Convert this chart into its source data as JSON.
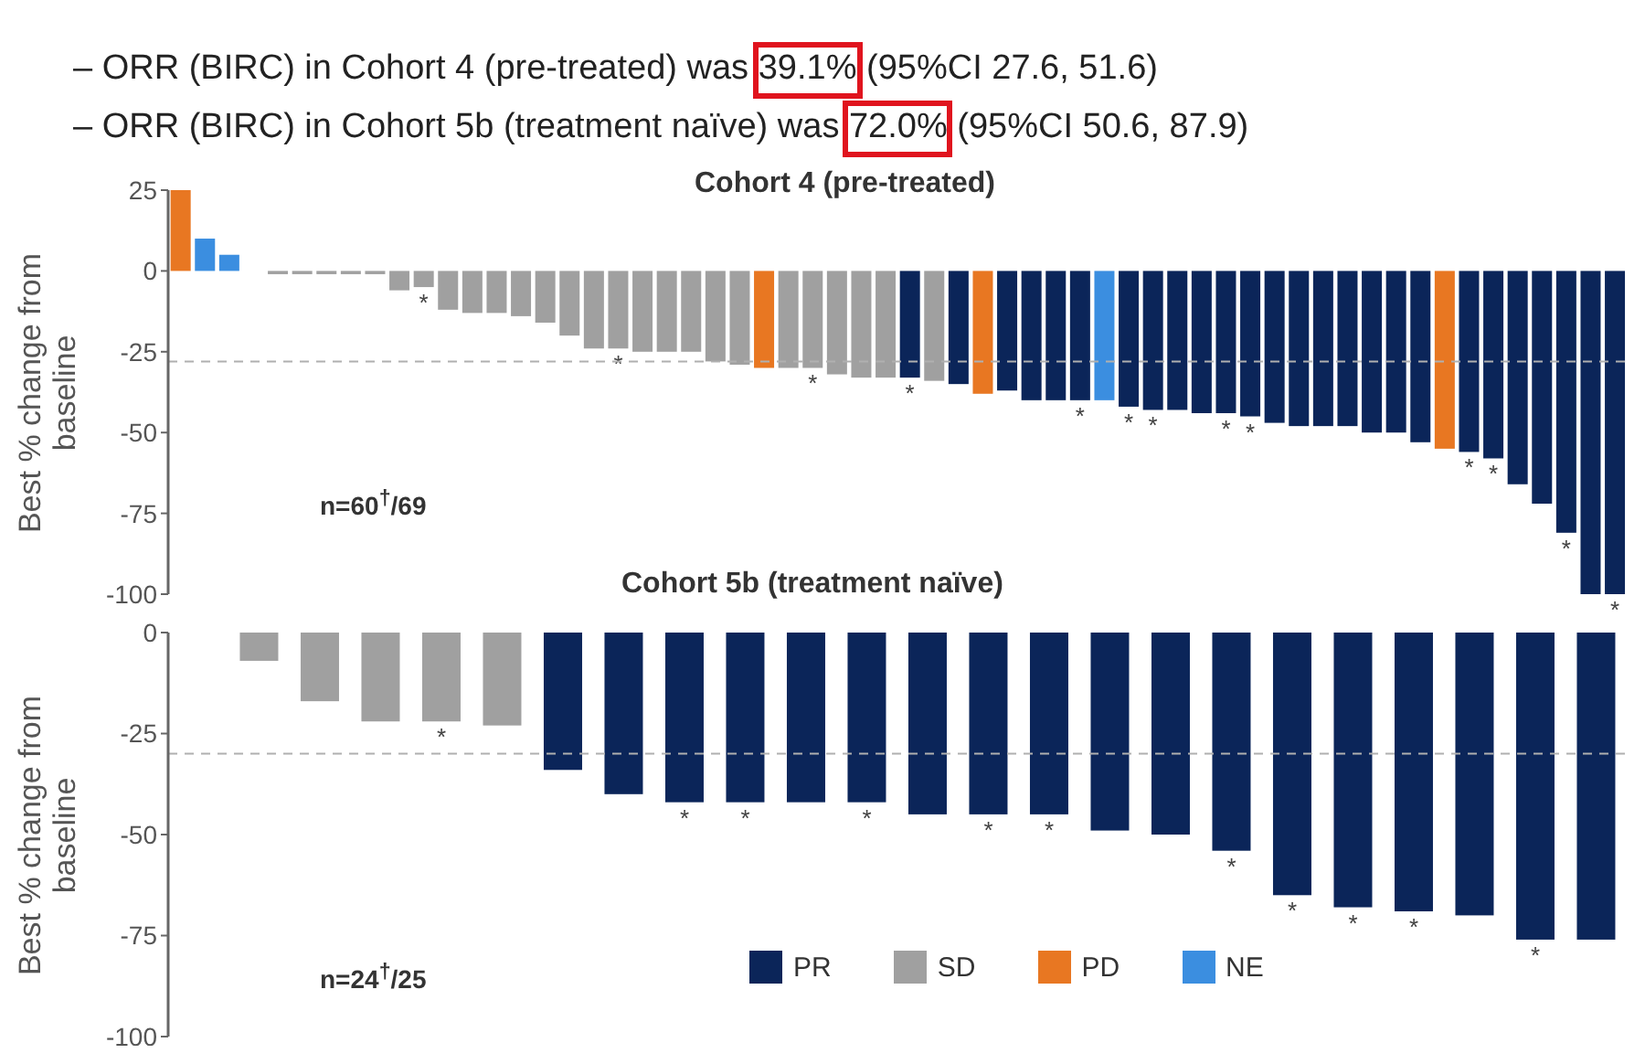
{
  "chart_data": [
    {
      "type": "bar",
      "title": "Cohort 4 (pre-treated)",
      "ylabel": "Best % change from baseline",
      "annotations": [
        "– ORR (BIRC) in Cohort 4 (pre-treated) was 39.1% (95%CI 27.6, 51.6)",
        "– ORR (BIRC) in Cohort 5b (treatment naïve) was 72.0% (95%CI 50.6, 87.9)",
        "n=60$^{†}$/69"
      ],
      "categories": [
        null,
        null,
        null,
        null,
        null,
        null,
        null,
        null,
        null,
        null,
        null,
        null,
        null,
        null,
        null,
        null,
        null,
        null,
        null,
        null,
        null,
        null,
        null,
        null,
        null,
        null,
        null,
        null,
        null,
        null,
        null,
        null,
        null,
        null,
        null,
        null,
        null,
        null,
        null,
        null,
        null,
        null,
        null,
        null,
        null,
        null,
        null,
        null,
        null,
        null,
        null,
        null,
        null,
        null,
        null,
        null,
        null,
        null,
        null,
        null
      ],
      "values": [
        25,
        10,
        5,
        null,
        -1,
        -1,
        -1,
        -1,
        -1,
        -6,
        -5,
        -12,
        -13,
        -13,
        -14,
        -16,
        -20,
        -24,
        -24,
        -25,
        -25,
        -25,
        -28,
        -29,
        -30,
        -30,
        -30,
        -32,
        -33,
        -33,
        -33,
        -34,
        -35,
        -38,
        -37,
        -40,
        -40,
        -40,
        -40,
        -42,
        -43,
        -43,
        -44,
        -44,
        -45,
        -47,
        -48,
        -48,
        -48,
        -50,
        -50,
        -53,
        -55,
        -56,
        -58,
        -66,
        -72,
        -81,
        -100,
        -100
      ],
      "colors": [
        "#e87722",
        "#3b8ee0",
        "#3b8ee0",
        "#a0a0a0",
        "#a0a0a0",
        "#a0a0a0",
        "#a0a0a0",
        "#a0a0a0",
        "#a0a0a0",
        "#a0a0a0",
        "#a0a0a0",
        "#a0a0a0",
        "#a0a0a0",
        "#a0a0a0",
        "#a0a0a0",
        "#a0a0a0",
        "#a0a0a0",
        "#a0a0a0",
        "#a0a0a0",
        "#a0a0a0",
        "#a0a0a0",
        "#a0a0a0",
        "#a0a0a0",
        "#a0a0a0",
        "#e87722",
        "#a0a0a0",
        "#a0a0a0",
        "#a0a0a0",
        "#a0a0a0",
        "#a0a0a0",
        "#0b2559",
        "#a0a0a0",
        "#0b2559",
        "#e87722",
        "#0b2559",
        "#0b2559",
        "#0b2559",
        "#0b2559",
        "#3b8ee0",
        "#0b2559",
        "#0b2559",
        "#0b2559",
        "#0b2559",
        "#0b2559",
        "#0b2559",
        "#0b2559",
        "#0b2559",
        "#0b2559",
        "#0b2559",
        "#0b2559",
        "#0b2559",
        "#0b2559",
        "#e87722",
        "#0b2559",
        "#0b2559",
        "#0b2559",
        "#0b2559",
        "#0b2559",
        "#0b2559",
        "#0b2559"
      ],
      "value_labels": [
        null,
        null,
        null,
        null,
        null,
        null,
        null,
        null,
        null,
        null,
        "*",
        null,
        null,
        null,
        null,
        null,
        null,
        null,
        "*",
        null,
        null,
        null,
        null,
        null,
        null,
        null,
        "*",
        null,
        null,
        null,
        "*",
        null,
        null,
        null,
        null,
        null,
        null,
        "*",
        null,
        "*",
        "*",
        null,
        null,
        "*",
        "*",
        null,
        null,
        null,
        null,
        null,
        null,
        null,
        null,
        "*",
        "*",
        null,
        null,
        "*",
        null,
        "*"
      ],
      "ylim": [
        -100,
        25
      ],
      "yticks": [
        25,
        0,
        -25,
        -50,
        -75,
        -100
      ],
      "grid": false,
      "ref_lines": [
        {
          "axis": "y",
          "value": -28,
          "color": "#b0b0b0",
          "line_style": "dashed"
        }
      ]
    },
    {
      "type": "bar",
      "title": "Cohort 5b (treatment naïve)",
      "ylabel": "Best % change from baseline",
      "annotations": [
        "n=24$^{†}$/25"
      ],
      "stacked": true,
      "categories": [
        null,
        null,
        null,
        null,
        null,
        null,
        null,
        null,
        null,
        null,
        null,
        null,
        null,
        null,
        null,
        null,
        null,
        null,
        null,
        null,
        null,
        null,
        null,
        null
      ],
      "series": [
        {
          "name": "PR",
          "color": "#0b2559",
          "values": [
            null,
            null,
            null,
            null,
            null,
            null,
            -34,
            -40,
            -42,
            -42,
            -42,
            -42,
            -45,
            -45,
            -45,
            -49,
            -50,
            -54,
            -65,
            -68,
            -69,
            -70,
            -76,
            -76
          ]
        },
        {
          "name": "SD",
          "color": "#a0a0a0",
          "values": [
            null,
            -7,
            -17,
            -22,
            -22,
            -23,
            null,
            null,
            null,
            null,
            null,
            null,
            null,
            null,
            null,
            null,
            null,
            null,
            null,
            null,
            null,
            null,
            null,
            null
          ]
        },
        {
          "name": "PD",
          "color": "#e87722",
          "values": [
            null,
            null,
            null,
            null,
            null,
            null,
            null,
            null,
            null,
            null,
            null,
            null,
            null,
            null,
            null,
            null,
            null,
            null,
            null,
            null,
            null,
            null,
            null,
            null
          ]
        },
        {
          "name": "NE",
          "color": "#3b8ee0",
          "values": [
            null,
            null,
            null,
            null,
            null,
            null,
            null,
            null,
            null,
            null,
            null,
            null,
            null,
            null,
            null,
            null,
            null,
            null,
            null,
            null,
            null,
            null,
            null,
            null
          ]
        }
      ],
      "value_labels": [
        null,
        null,
        null,
        null,
        "*",
        null,
        null,
        null,
        "*",
        "*",
        null,
        "*",
        null,
        "*",
        "*",
        null,
        null,
        "*",
        "*",
        "*",
        "*",
        null,
        "*",
        null
      ],
      "ylim": [
        -100,
        0
      ],
      "yticks": [
        0,
        -25,
        -50,
        -75,
        -100
      ],
      "grid": false,
      "legend": "bottom",
      "ref_lines": [
        {
          "axis": "y",
          "value": -30,
          "color": "#b0b0b0",
          "line_style": "dashed"
        }
      ]
    }
  ]
}
